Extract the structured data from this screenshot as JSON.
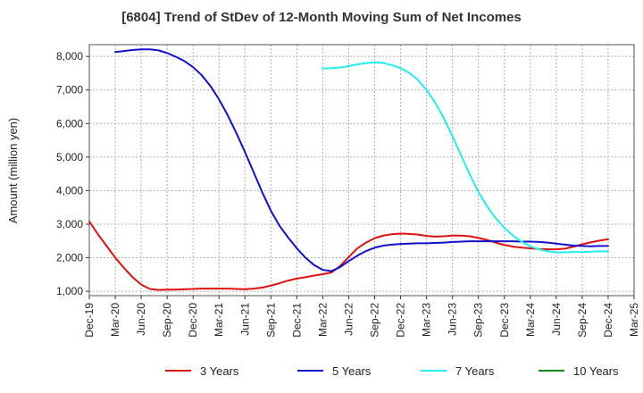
{
  "chart_data": {
    "type": "line",
    "title": "[6804]  Trend of StDev of 12-Month Moving Sum of Net Incomes",
    "xlabel": "",
    "ylabel": "Amount (million yen)",
    "ylim": [
      870,
      8350
    ],
    "yticks": [
      1000,
      2000,
      3000,
      4000,
      5000,
      6000,
      7000,
      8000
    ],
    "ytick_labels": [
      "1,000",
      "2,000",
      "3,000",
      "4,000",
      "5,000",
      "6,000",
      "7,000",
      "8,000"
    ],
    "xlim": [
      "2019-12",
      "2025-03"
    ],
    "xtick_labels": [
      "Dec-19",
      "Mar-20",
      "Jun-20",
      "Sep-20",
      "Dec-20",
      "Mar-21",
      "Jun-21",
      "Sep-21",
      "Dec-21",
      "Mar-22",
      "Jun-22",
      "Sep-22",
      "Dec-22",
      "Mar-23",
      "Jun-23",
      "Sep-23",
      "Dec-23",
      "Mar-24",
      "Jun-24",
      "Sep-24",
      "Dec-24",
      "Mar-25"
    ],
    "grid": true,
    "legend_position": "bottom",
    "series": [
      {
        "name": "3 Years",
        "color": "#dd1111",
        "points": [
          [
            "2019-12",
            3080
          ],
          [
            "2020-01",
            2700
          ],
          [
            "2020-02",
            2350
          ],
          [
            "2020-03",
            2000
          ],
          [
            "2020-04",
            1700
          ],
          [
            "2020-05",
            1420
          ],
          [
            "2020-06",
            1200
          ],
          [
            "2020-07",
            1070
          ],
          [
            "2020-08",
            1040
          ],
          [
            "2020-09",
            1050
          ],
          [
            "2020-10",
            1050
          ],
          [
            "2020-11",
            1060
          ],
          [
            "2020-12",
            1070
          ],
          [
            "2021-01",
            1080
          ],
          [
            "2021-02",
            1080
          ],
          [
            "2021-03",
            1080
          ],
          [
            "2021-04",
            1080
          ],
          [
            "2021-05",
            1070
          ],
          [
            "2021-06",
            1060
          ],
          [
            "2021-07",
            1080
          ],
          [
            "2021-08",
            1110
          ],
          [
            "2021-09",
            1170
          ],
          [
            "2021-10",
            1240
          ],
          [
            "2021-11",
            1320
          ],
          [
            "2021-12",
            1380
          ],
          [
            "2022-01",
            1420
          ],
          [
            "2022-02",
            1470
          ],
          [
            "2022-03",
            1510
          ],
          [
            "2022-04",
            1560
          ],
          [
            "2022-05",
            1750
          ],
          [
            "2022-06",
            2020
          ],
          [
            "2022-07",
            2280
          ],
          [
            "2022-08",
            2450
          ],
          [
            "2022-09",
            2580
          ],
          [
            "2022-10",
            2660
          ],
          [
            "2022-11",
            2700
          ],
          [
            "2022-12",
            2720
          ],
          [
            "2023-01",
            2710
          ],
          [
            "2023-02",
            2690
          ],
          [
            "2023-03",
            2650
          ],
          [
            "2023-04",
            2630
          ],
          [
            "2023-05",
            2640
          ],
          [
            "2023-06",
            2660
          ],
          [
            "2023-07",
            2660
          ],
          [
            "2023-08",
            2640
          ],
          [
            "2023-09",
            2590
          ],
          [
            "2023-10",
            2530
          ],
          [
            "2023-11",
            2450
          ],
          [
            "2023-12",
            2380
          ],
          [
            "2024-01",
            2330
          ],
          [
            "2024-02",
            2300
          ],
          [
            "2024-03",
            2280
          ],
          [
            "2024-04",
            2260
          ],
          [
            "2024-05",
            2250
          ],
          [
            "2024-06",
            2250
          ],
          [
            "2024-07",
            2270
          ],
          [
            "2024-08",
            2330
          ],
          [
            "2024-09",
            2400
          ],
          [
            "2024-10",
            2460
          ],
          [
            "2024-11",
            2510
          ],
          [
            "2024-12",
            2550
          ]
        ]
      },
      {
        "name": "5 Years",
        "color": "#1111cc",
        "points": [
          [
            "2020-03",
            8130
          ],
          [
            "2020-04",
            8160
          ],
          [
            "2020-05",
            8190
          ],
          [
            "2020-06",
            8210
          ],
          [
            "2020-07",
            8210
          ],
          [
            "2020-08",
            8180
          ],
          [
            "2020-09",
            8100
          ],
          [
            "2020-10",
            7990
          ],
          [
            "2020-11",
            7860
          ],
          [
            "2020-12",
            7680
          ],
          [
            "2021-01",
            7440
          ],
          [
            "2021-02",
            7120
          ],
          [
            "2021-03",
            6720
          ],
          [
            "2021-04",
            6250
          ],
          [
            "2021-05",
            5720
          ],
          [
            "2021-06",
            5150
          ],
          [
            "2021-07",
            4550
          ],
          [
            "2021-08",
            3950
          ],
          [
            "2021-09",
            3400
          ],
          [
            "2021-10",
            2950
          ],
          [
            "2021-11",
            2600
          ],
          [
            "2021-12",
            2280
          ],
          [
            "2022-01",
            2000
          ],
          [
            "2022-02",
            1780
          ],
          [
            "2022-03",
            1640
          ],
          [
            "2022-04",
            1600
          ],
          [
            "2022-05",
            1720
          ],
          [
            "2022-06",
            1900
          ],
          [
            "2022-07",
            2060
          ],
          [
            "2022-08",
            2200
          ],
          [
            "2022-09",
            2300
          ],
          [
            "2022-10",
            2360
          ],
          [
            "2022-11",
            2390
          ],
          [
            "2022-12",
            2410
          ],
          [
            "2023-01",
            2420
          ],
          [
            "2023-02",
            2430
          ],
          [
            "2023-03",
            2430
          ],
          [
            "2023-04",
            2440
          ],
          [
            "2023-05",
            2450
          ],
          [
            "2023-06",
            2470
          ],
          [
            "2023-07",
            2480
          ],
          [
            "2023-08",
            2490
          ],
          [
            "2023-09",
            2490
          ],
          [
            "2023-10",
            2490
          ],
          [
            "2023-11",
            2490
          ],
          [
            "2023-12",
            2490
          ],
          [
            "2024-01",
            2490
          ],
          [
            "2024-02",
            2480
          ],
          [
            "2024-03",
            2480
          ],
          [
            "2024-04",
            2470
          ],
          [
            "2024-05",
            2450
          ],
          [
            "2024-06",
            2420
          ],
          [
            "2024-07",
            2390
          ],
          [
            "2024-08",
            2360
          ],
          [
            "2024-09",
            2350
          ],
          [
            "2024-10",
            2340
          ],
          [
            "2024-11",
            2350
          ],
          [
            "2024-12",
            2350
          ]
        ]
      },
      {
        "name": "7 Years",
        "color": "#22eeee",
        "points": [
          [
            "2022-03",
            7640
          ],
          [
            "2022-04",
            7650
          ],
          [
            "2022-05",
            7670
          ],
          [
            "2022-06",
            7710
          ],
          [
            "2022-07",
            7760
          ],
          [
            "2022-08",
            7800
          ],
          [
            "2022-09",
            7820
          ],
          [
            "2022-10",
            7800
          ],
          [
            "2022-11",
            7740
          ],
          [
            "2022-12",
            7650
          ],
          [
            "2023-01",
            7510
          ],
          [
            "2023-02",
            7300
          ],
          [
            "2023-03",
            7000
          ],
          [
            "2023-04",
            6620
          ],
          [
            "2023-05",
            6160
          ],
          [
            "2023-06",
            5620
          ],
          [
            "2023-07",
            5050
          ],
          [
            "2023-08",
            4480
          ],
          [
            "2023-09",
            3960
          ],
          [
            "2023-10",
            3530
          ],
          [
            "2023-11",
            3180
          ],
          [
            "2023-12",
            2890
          ],
          [
            "2024-01",
            2660
          ],
          [
            "2024-02",
            2480
          ],
          [
            "2024-03",
            2340
          ],
          [
            "2024-04",
            2250
          ],
          [
            "2024-05",
            2190
          ],
          [
            "2024-06",
            2160
          ],
          [
            "2024-07",
            2160
          ],
          [
            "2024-08",
            2170
          ],
          [
            "2024-09",
            2170
          ],
          [
            "2024-10",
            2180
          ],
          [
            "2024-11",
            2190
          ],
          [
            "2024-12",
            2190
          ]
        ]
      },
      {
        "name": "10 Years",
        "color": "#118811",
        "points": []
      }
    ]
  }
}
